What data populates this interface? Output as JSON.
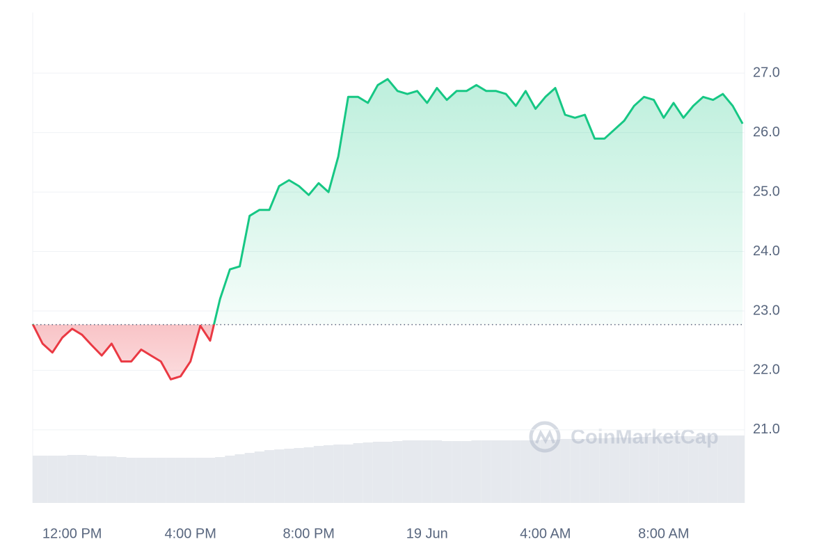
{
  "chart_data": {
    "type": "line",
    "watermark": "CoinMarketCap",
    "categories": [
      null,
      null,
      null,
      null,
      "12:00 PM",
      null,
      null,
      null,
      null,
      null,
      null,
      null,
      null,
      null,
      null,
      null,
      "4:00 PM",
      null,
      null,
      null,
      null,
      null,
      null,
      null,
      null,
      null,
      null,
      null,
      "8:00 PM",
      null,
      null,
      null,
      null,
      null,
      null,
      null,
      null,
      null,
      null,
      null,
      "19 Jun",
      null,
      null,
      null,
      null,
      null,
      null,
      null,
      null,
      null,
      null,
      null,
      "4:00 AM",
      null,
      null,
      null,
      null,
      null,
      null,
      null,
      null,
      null,
      null,
      null,
      "8:00 AM",
      null,
      null,
      null,
      null,
      null,
      null,
      null,
      null
    ],
    "values": [
      22.78,
      22.45,
      22.3,
      22.55,
      22.7,
      22.6,
      22.42,
      22.25,
      22.45,
      22.15,
      22.15,
      22.35,
      22.25,
      22.15,
      21.85,
      21.9,
      22.15,
      22.75,
      22.5,
      23.2,
      23.7,
      23.75,
      24.6,
      24.7,
      24.7,
      25.1,
      25.2,
      25.1,
      24.95,
      25.15,
      25.0,
      25.6,
      26.6,
      26.6,
      26.5,
      26.8,
      26.9,
      26.7,
      26.65,
      26.7,
      26.5,
      26.75,
      26.55,
      26.7,
      26.7,
      26.8,
      26.7,
      26.7,
      26.65,
      26.45,
      26.7,
      26.4,
      26.6,
      26.75,
      26.3,
      26.25,
      26.3,
      25.9,
      25.9,
      26.05,
      26.2,
      26.45,
      26.6,
      26.55,
      26.25,
      26.5,
      26.25,
      26.45,
      26.6,
      26.55,
      26.65,
      26.45,
      26.15
    ],
    "volume": [
      68,
      68,
      68,
      68,
      69,
      69,
      68,
      67,
      67,
      66,
      65,
      65,
      65,
      65,
      65,
      65,
      65,
      65,
      65,
      66,
      68,
      70,
      72,
      74,
      76,
      77,
      78,
      79,
      80,
      82,
      83,
      84,
      84,
      86,
      87,
      88,
      88,
      89,
      90,
      90,
      90,
      90,
      89,
      89,
      89,
      90,
      90,
      90,
      90,
      90,
      90,
      90,
      91,
      91,
      92,
      92,
      92,
      93,
      93,
      94,
      94,
      94,
      95,
      95,
      96,
      96,
      96,
      96,
      97,
      97,
      97,
      97,
      97
    ],
    "baseline": 22.77,
    "up_color": "#16c784",
    "down_color": "#ea3943",
    "volume_color": "#e6e9ee",
    "ylim": [
      19.77,
      28.02
    ],
    "yticks": [
      {
        "value": 21,
        "label": "21.0"
      },
      {
        "value": 22,
        "label": "22.0"
      },
      {
        "value": 23,
        "label": "23.0"
      },
      {
        "value": 24,
        "label": "24.0"
      },
      {
        "value": 25,
        "label": "25.0"
      },
      {
        "value": 26,
        "label": "26.0"
      },
      {
        "value": 27,
        "label": "27.0"
      }
    ],
    "grid": true
  }
}
